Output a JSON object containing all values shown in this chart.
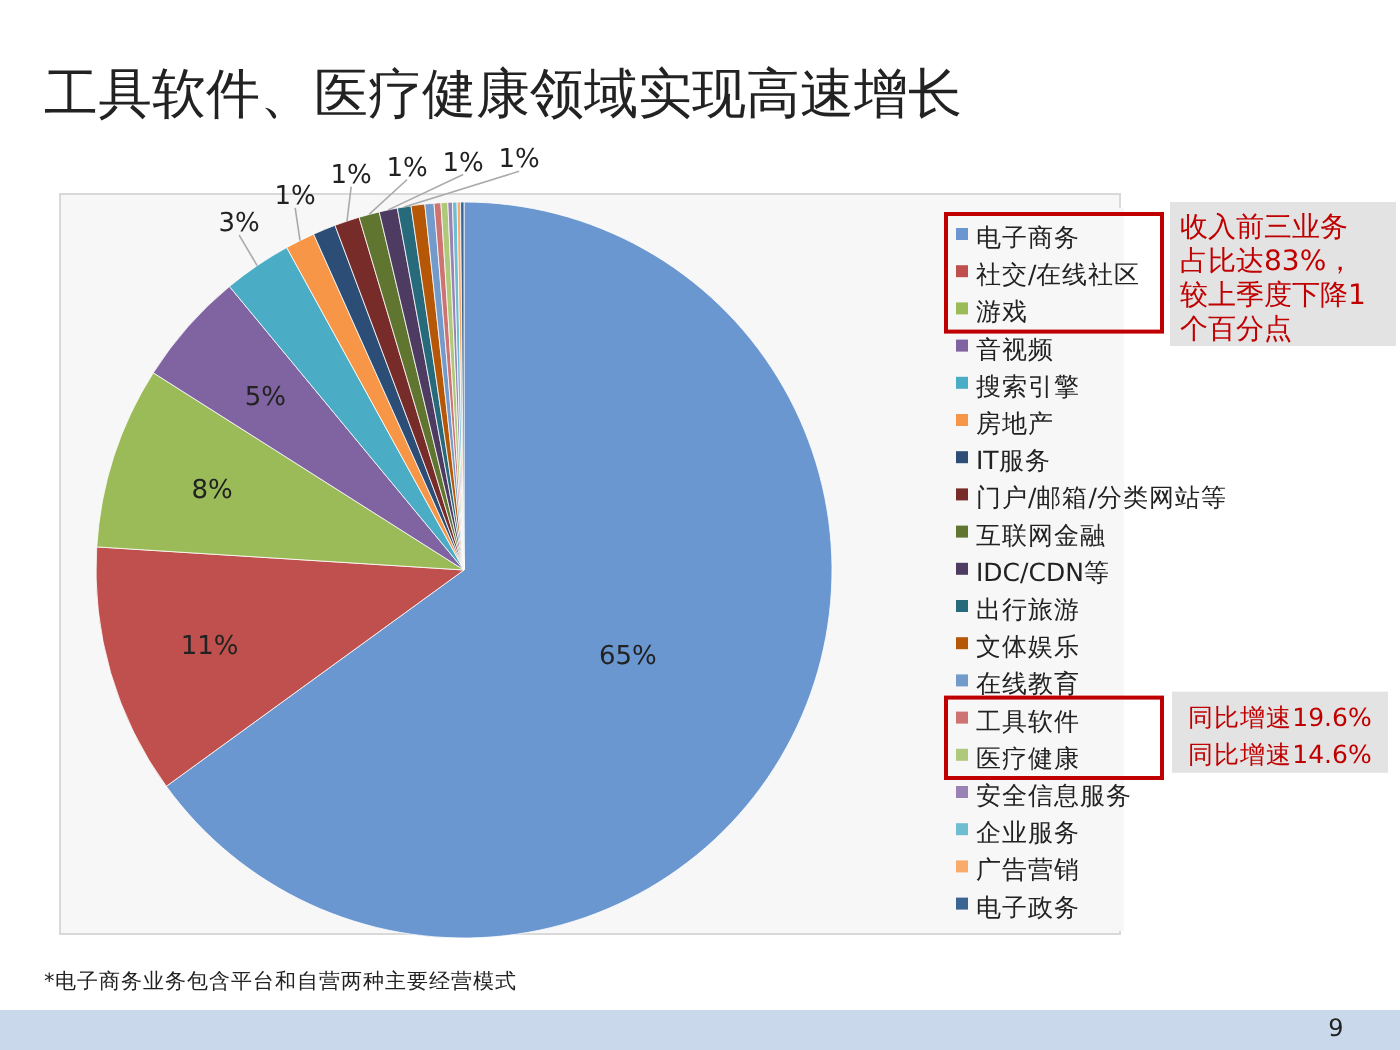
{
  "chart_data": {
    "type": "pie",
    "title": "工具软件、医疗健康领域实现高速增长",
    "categories": [
      "电子商务",
      "社交/在线社区",
      "游戏",
      "音视频",
      "搜索引擎",
      "房地产",
      "IT服务",
      "门户/邮箱/分类网站等",
      "互联网金融",
      "IDC/CDN等",
      "出行旅游",
      "文体娱乐",
      "在线教育",
      "工具软件",
      "医疗健康",
      "安全信息服务",
      "企业服务",
      "广告营销",
      "电子政务"
    ],
    "values": [
      65,
      11,
      8,
      5,
      3,
      1.3,
      1.0,
      1.1,
      0.9,
      0.8,
      0.6,
      0.6,
      0.4,
      0.3,
      0.3,
      0.2,
      0.2,
      0.15,
      0.15
    ],
    "colors": [
      "#6a97cf",
      "#c0504d",
      "#9bbb59",
      "#8064a2",
      "#4bacc6",
      "#f79646",
      "#2c4d75",
      "#772c2a",
      "#5f7530",
      "#4d3b62",
      "#276a7c",
      "#b65708",
      "#729aca",
      "#cd7371",
      "#afc97a",
      "#9983b5",
      "#6fbdd1",
      "#f9ab6b",
      "#3a6491"
    ],
    "value_labels": [
      "65%",
      "11%",
      "8%",
      "5%",
      "3%",
      "1%",
      null,
      "1%",
      "1%",
      "1%",
      "1%",
      null,
      null,
      null,
      null,
      null,
      null,
      null,
      null
    ],
    "legend": "right",
    "annotations": [
      "收入前三业务占比达83%，较上季度下降1个百分点",
      "同比增速19.6%",
      "同比增速14.6%",
      "*电子商务业务包含平台和自营两种主要经营模式",
      "9"
    ]
  }
}
